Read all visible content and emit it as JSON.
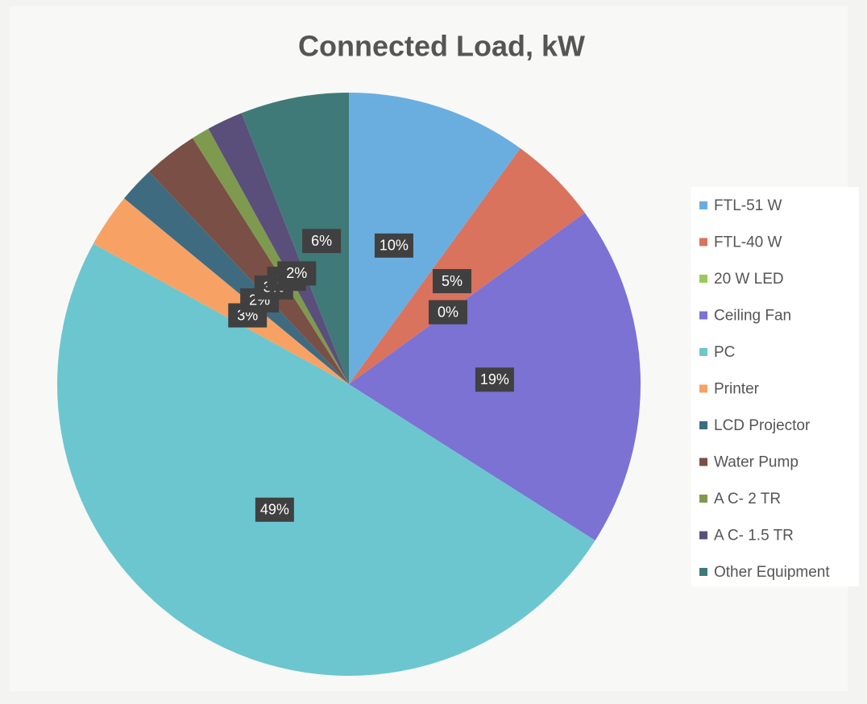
{
  "chart_data": {
    "type": "pie",
    "title": "Connected Load, kW",
    "categories": [
      "FTL-51 W",
      "FTL-40 W",
      "20 W LED",
      "Ceiling Fan",
      "PC",
      "Printer",
      "LCD Projector",
      "Water Pump",
      "A C- 2 TR",
      "A C- 1.5 TR",
      "Other Equipment"
    ],
    "values": [
      10,
      5,
      0,
      19,
      49,
      3,
      2,
      3,
      1,
      2,
      6
    ],
    "value_labels": [
      "10%",
      "5%",
      "0%",
      "19%",
      "49%",
      "3%",
      "2%",
      "3%",
      "1%",
      "2%",
      "6%"
    ],
    "colors": [
      "#6aaee0",
      "#d9735e",
      "#9bc85a",
      "#7b72d4",
      "#6cc6cf",
      "#f7a264",
      "#3f6b80",
      "#7a4f45",
      "#7e9a4e",
      "#5a4f7a",
      "#3f7a78"
    ],
    "legend": "right"
  }
}
